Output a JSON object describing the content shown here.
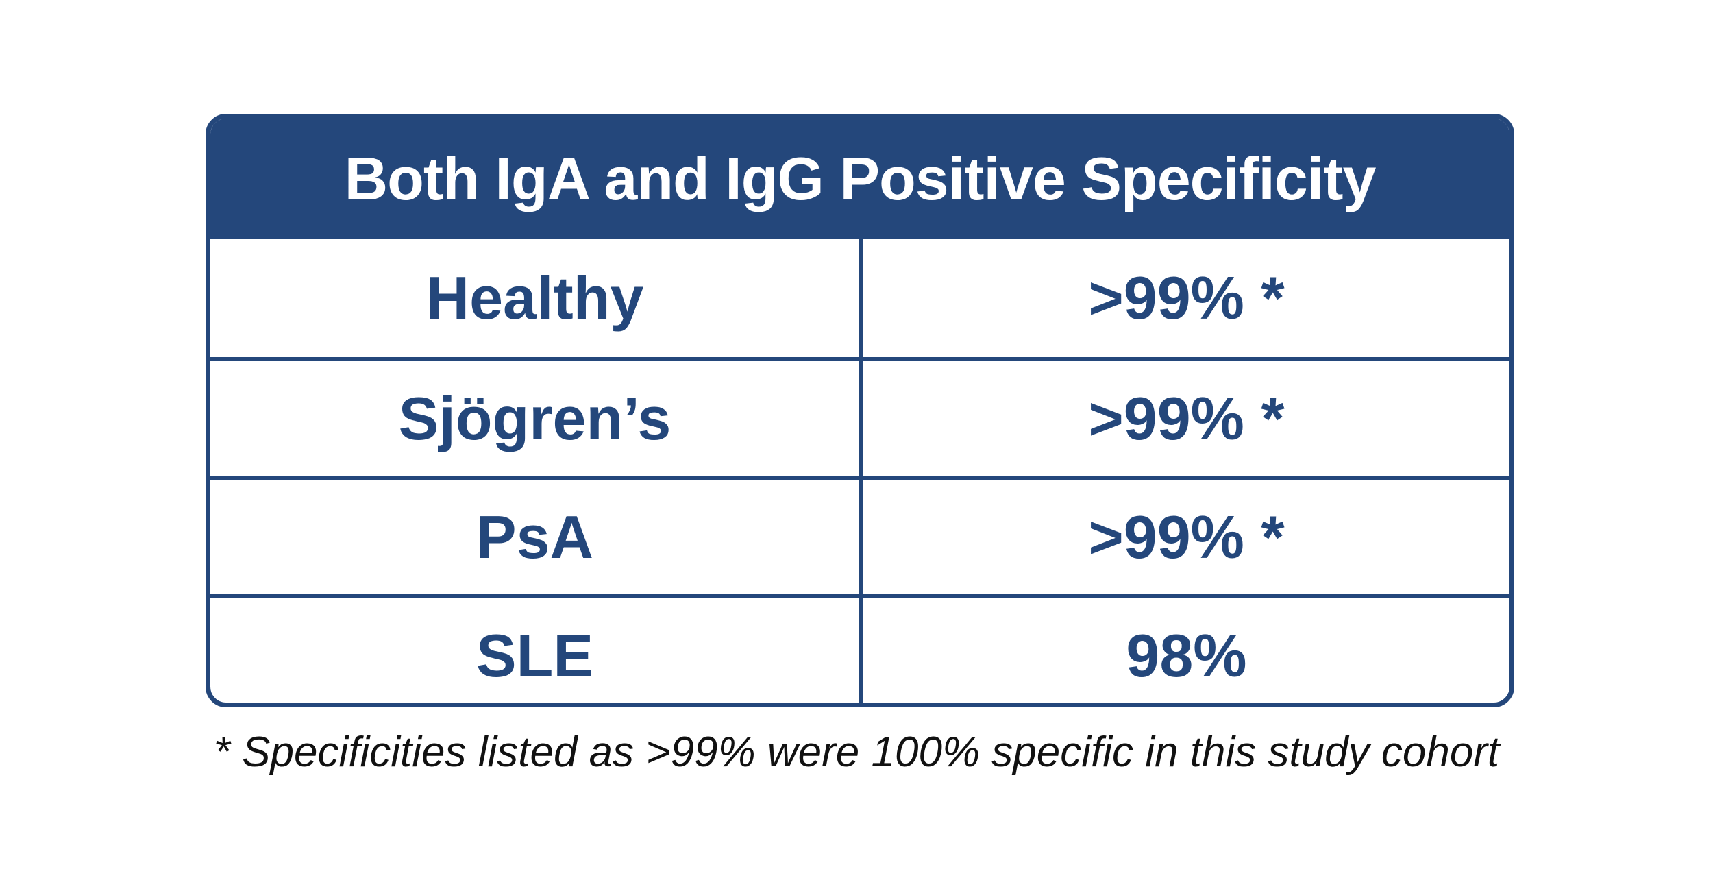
{
  "table": {
    "title": "Both IgA and IgG Positive Specificity",
    "rows": [
      {
        "group": "Healthy",
        "value": ">99% *"
      },
      {
        "group": "Sjögren’s",
        "value": ">99% *"
      },
      {
        "group": "PsA",
        "value": ">99% *"
      },
      {
        "group": "SLE",
        "value": "98%"
      }
    ]
  },
  "footnote": "* Specificities listed as >99% were 100% specific in this study cohort",
  "colors": {
    "header_background": "#24477b",
    "header_text": "#ffffff",
    "cell_text": "#24477b",
    "border": "#24477b",
    "footnote_text": "#111111"
  }
}
